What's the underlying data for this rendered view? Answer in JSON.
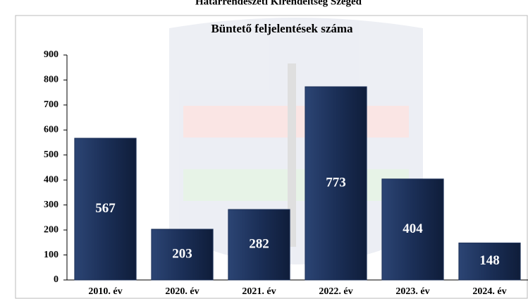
{
  "chart_data": {
    "type": "bar",
    "header": "Határrendészeti Kirendeltség Szeged",
    "title": "Büntető feljelentések száma",
    "categories": [
      "2010. év",
      "2020. év",
      "2021. év",
      "2022. év",
      "2023. év",
      "2024. év"
    ],
    "values": [
      567,
      203,
      282,
      773,
      404,
      148
    ],
    "color": "#1b2f57",
    "ylim": [
      0,
      900
    ],
    "yticks": [
      0,
      100,
      200,
      300,
      400,
      500,
      600,
      700,
      800,
      900
    ]
  }
}
